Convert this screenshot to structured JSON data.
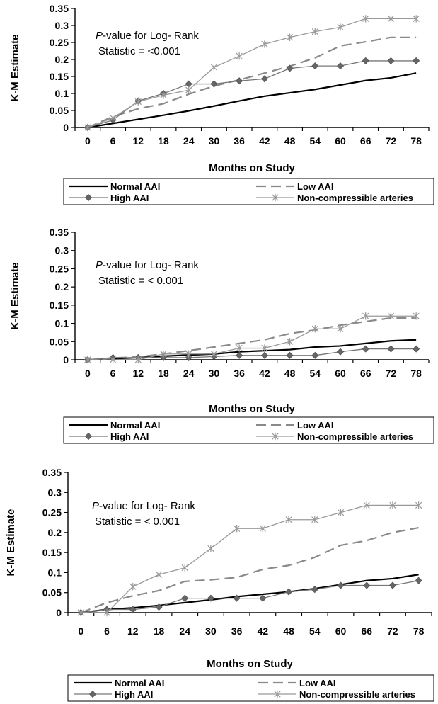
{
  "chart_data": [
    {
      "type": "line",
      "xlabel": "Months on Study",
      "ylabel": "K-M Estimate",
      "x": [
        0,
        6,
        12,
        18,
        24,
        30,
        36,
        42,
        48,
        54,
        60,
        66,
        72,
        78
      ],
      "ylim": [
        0,
        0.35
      ],
      "yticks": [
        "0",
        "0.05",
        "0.1",
        "0.15",
        "0.2",
        "0.25",
        "0.3",
        "0.35"
      ],
      "annotation": {
        "italic": "P",
        "rest": "-value for Log- Rank",
        "line2": "Statistic = <0.001"
      },
      "legend": {
        "placement": "bottom",
        "items": [
          "Normal AAI",
          "Low AAI",
          "High AAI",
          "Non-compressible arteries"
        ]
      },
      "series": [
        {
          "name": "Normal AAI",
          "values": [
            0,
            0.012,
            0.024,
            0.036,
            0.049,
            0.063,
            0.078,
            0.092,
            0.102,
            0.112,
            0.125,
            0.138,
            0.146,
            0.16
          ]
        },
        {
          "name": "Low AAI",
          "values": [
            0,
            0.032,
            0.055,
            0.07,
            0.098,
            0.122,
            0.14,
            0.16,
            0.18,
            0.205,
            0.24,
            0.252,
            0.265,
            0.265
          ]
        },
        {
          "name": "High AAI",
          "values": [
            0,
            0.022,
            0.078,
            0.1,
            0.128,
            0.128,
            0.137,
            0.143,
            0.174,
            0.181,
            0.181,
            0.196,
            0.196,
            0.196
          ]
        },
        {
          "name": "Non-compressible arteries",
          "values": [
            0,
            0.028,
            0.076,
            0.095,
            0.11,
            0.177,
            0.21,
            0.245,
            0.265,
            0.282,
            0.295,
            0.32,
            0.32,
            0.32
          ]
        }
      ]
    },
    {
      "type": "line",
      "xlabel": "Months on Study",
      "ylabel": "K-M Estimate",
      "x": [
        0,
        6,
        12,
        18,
        24,
        30,
        36,
        42,
        48,
        54,
        60,
        66,
        72,
        78
      ],
      "ylim": [
        0,
        0.35
      ],
      "yticks": [
        "0",
        "0.05",
        "0.1",
        "0.15",
        "0.2",
        "0.25",
        "0.3",
        "0.35"
      ],
      "annotation": {
        "italic": "P",
        "rest": "-value for Log- Rank",
        "line2": "Statistic = < 0.001"
      },
      "legend": {
        "placement": "bottom",
        "items": [
          "Normal AAI",
          "Low AAI",
          "High AAI",
          "Non-compressible arteries"
        ]
      },
      "series": [
        {
          "name": "Normal AAI",
          "values": [
            0,
            0.003,
            0.006,
            0.01,
            0.013,
            0.016,
            0.022,
            0.025,
            0.028,
            0.035,
            0.038,
            0.045,
            0.052,
            0.055
          ]
        },
        {
          "name": "Low AAI",
          "values": [
            0,
            0.005,
            0.008,
            0.016,
            0.025,
            0.035,
            0.045,
            0.055,
            0.072,
            0.082,
            0.095,
            0.105,
            0.115,
            0.115
          ]
        },
        {
          "name": "High AAI",
          "values": [
            0,
            0.006,
            0.006,
            0.006,
            0.006,
            0.009,
            0.012,
            0.012,
            0.012,
            0.012,
            0.022,
            0.03,
            0.03,
            0.03
          ]
        },
        {
          "name": "Non-compressible arteries",
          "values": [
            0,
            0,
            0,
            0.016,
            0.016,
            0.016,
            0.032,
            0.032,
            0.05,
            0.085,
            0.085,
            0.12,
            0.12,
            0.12
          ]
        }
      ]
    },
    {
      "type": "line",
      "xlabel": "Months on Study",
      "ylabel": "K-M Estimate",
      "x": [
        0,
        6,
        12,
        18,
        24,
        30,
        36,
        42,
        48,
        54,
        60,
        66,
        72,
        78
      ],
      "ylim": [
        0,
        0.35
      ],
      "yticks": [
        "0",
        "0.05",
        "0.1",
        "0.15",
        "0.2",
        "0.25",
        "0.3",
        "0.35"
      ],
      "annotation": {
        "italic": "P",
        "rest": "-value for Log- Rank",
        "line2": "Statistic = < 0.001"
      },
      "legend": {
        "placement": "bottom",
        "items": [
          "Normal AAI",
          "Low AAI",
          "High AAI",
          "Non-compressible arteries"
        ]
      },
      "series": [
        {
          "name": "Normal AAI",
          "values": [
            0,
            0.008,
            0.012,
            0.018,
            0.025,
            0.032,
            0.04,
            0.046,
            0.052,
            0.06,
            0.07,
            0.08,
            0.085,
            0.095
          ]
        },
        {
          "name": "Low AAI",
          "values": [
            0,
            0.025,
            0.042,
            0.055,
            0.078,
            0.082,
            0.088,
            0.108,
            0.118,
            0.138,
            0.168,
            0.18,
            0.2,
            0.212
          ]
        },
        {
          "name": "High AAI",
          "values": [
            0,
            0.008,
            0.008,
            0.014,
            0.036,
            0.036,
            0.036,
            0.036,
            0.052,
            0.058,
            0.068,
            0.068,
            0.068,
            0.08
          ]
        },
        {
          "name": "Non-compressible arteries",
          "values": [
            0,
            0,
            0.065,
            0.095,
            0.112,
            0.16,
            0.21,
            0.21,
            0.232,
            0.232,
            0.25,
            0.268,
            0.268,
            0.268
          ]
        }
      ]
    }
  ]
}
